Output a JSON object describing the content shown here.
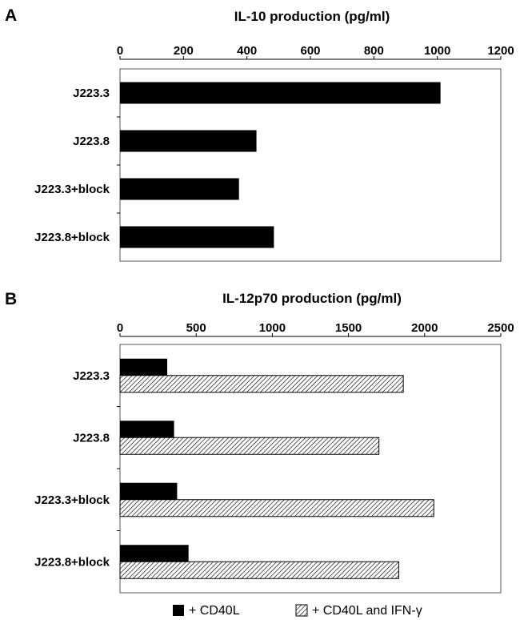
{
  "figure": {
    "panel_letters": [
      "A",
      "B"
    ]
  },
  "chart_data": [
    {
      "type": "bar",
      "orientation": "horizontal",
      "title": "IL-10 production (pg/ml)",
      "xlabel": "",
      "ylabel": "",
      "categories": [
        "J223.3",
        "J223.8",
        "J223.3+block",
        "J223.8+block"
      ],
      "series": [
        {
          "values": [
            1010,
            430,
            375,
            485
          ],
          "color": "#000000",
          "pattern": "solid"
        }
      ],
      "xlim": [
        0,
        1200
      ],
      "ticks": [
        0,
        200,
        400,
        600,
        800,
        1000,
        1200
      ],
      "tick_labels": [
        "0",
        "200",
        "400",
        "600",
        "800",
        "1000",
        "1200"
      ],
      "axis_position": "top",
      "grid": false
    },
    {
      "type": "bar",
      "orientation": "horizontal",
      "title": "IL-12p70 production (pg/ml)",
      "xlabel": "",
      "ylabel": "",
      "categories": [
        "J223.3",
        "J223.8",
        "J223.3+block",
        "J223.8+block"
      ],
      "series": [
        {
          "name": "+ CD40L",
          "values": [
            310,
            355,
            375,
            450
          ],
          "color": "#000000",
          "pattern": "solid"
        },
        {
          "name": "+ CD40L and IFN-γ",
          "values": [
            1860,
            1700,
            2060,
            1830
          ],
          "color": "#ffffff",
          "pattern": "hatched"
        }
      ],
      "xlim": [
        0,
        2500
      ],
      "ticks": [
        0,
        500,
        1000,
        1500,
        2000,
        2500
      ],
      "tick_labels": [
        "0",
        "500",
        "1000",
        "1500",
        "2000",
        "2500"
      ],
      "axis_position": "top",
      "grid": false,
      "legend": "bottom"
    }
  ]
}
